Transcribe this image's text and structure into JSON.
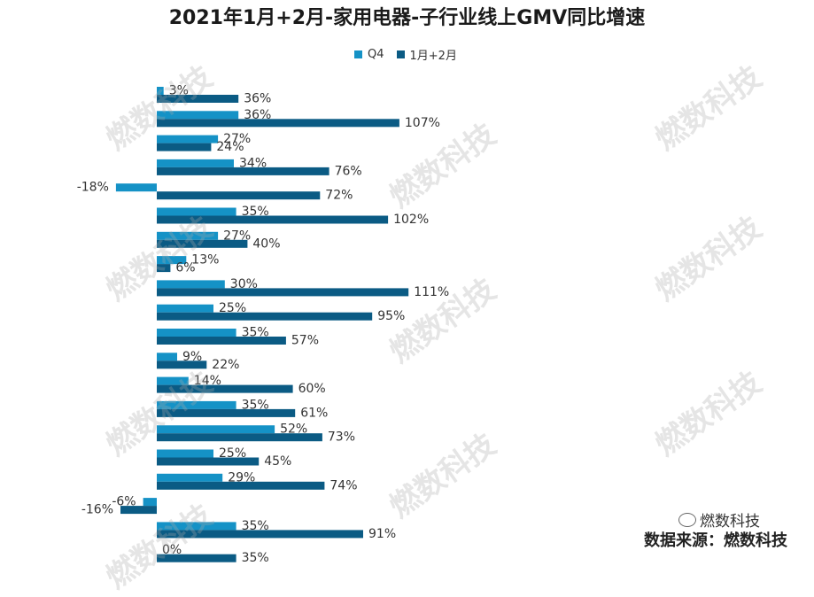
{
  "chart_data": {
    "type": "bar",
    "orientation": "horizontal",
    "title": "2021年1月+2月-家用电器-子行业线上GMV同比增速",
    "legend_position": "top",
    "categories": [
      "",
      "",
      "",
      "",
      "",
      "",
      "",
      "",
      "",
      "",
      "",
      "",
      "",
      "",
      "",
      "",
      "",
      "",
      "",
      ""
    ],
    "series": [
      {
        "name": "Q4",
        "color": "#1592c6",
        "values": [
          3,
          36,
          27,
          34,
          -18,
          35,
          27,
          13,
          30,
          25,
          35,
          9,
          14,
          35,
          52,
          25,
          29,
          -6,
          35,
          0
        ],
        "labels": [
          "3%",
          "36%",
          "27%",
          "34%",
          "-18%",
          "35%",
          "27%",
          "13%",
          "30%",
          "25%",
          "35%",
          "9%",
          "14%",
          "35%",
          "52%",
          "25%",
          "29%",
          "-6%",
          "35%",
          "0%"
        ]
      },
      {
        "name": "1月+2月",
        "color": "#0b5b84",
        "values": [
          36,
          107,
          24,
          76,
          72,
          102,
          40,
          6,
          111,
          95,
          57,
          22,
          60,
          61,
          73,
          45,
          74,
          -16,
          91,
          35
        ],
        "labels": [
          "36%",
          "107%",
          "24%",
          "76%",
          "72%",
          "102%",
          "40%",
          "6%",
          "111%",
          "95%",
          "57%",
          "22%",
          "60%",
          "61%",
          "73%",
          "45%",
          "74%",
          "-16%",
          "91%",
          "35%"
        ]
      }
    ],
    "grid": false
  },
  "watermark": "燃数科技",
  "brand_label": "燃数科技",
  "source_text": "数据来源：燃数科技"
}
